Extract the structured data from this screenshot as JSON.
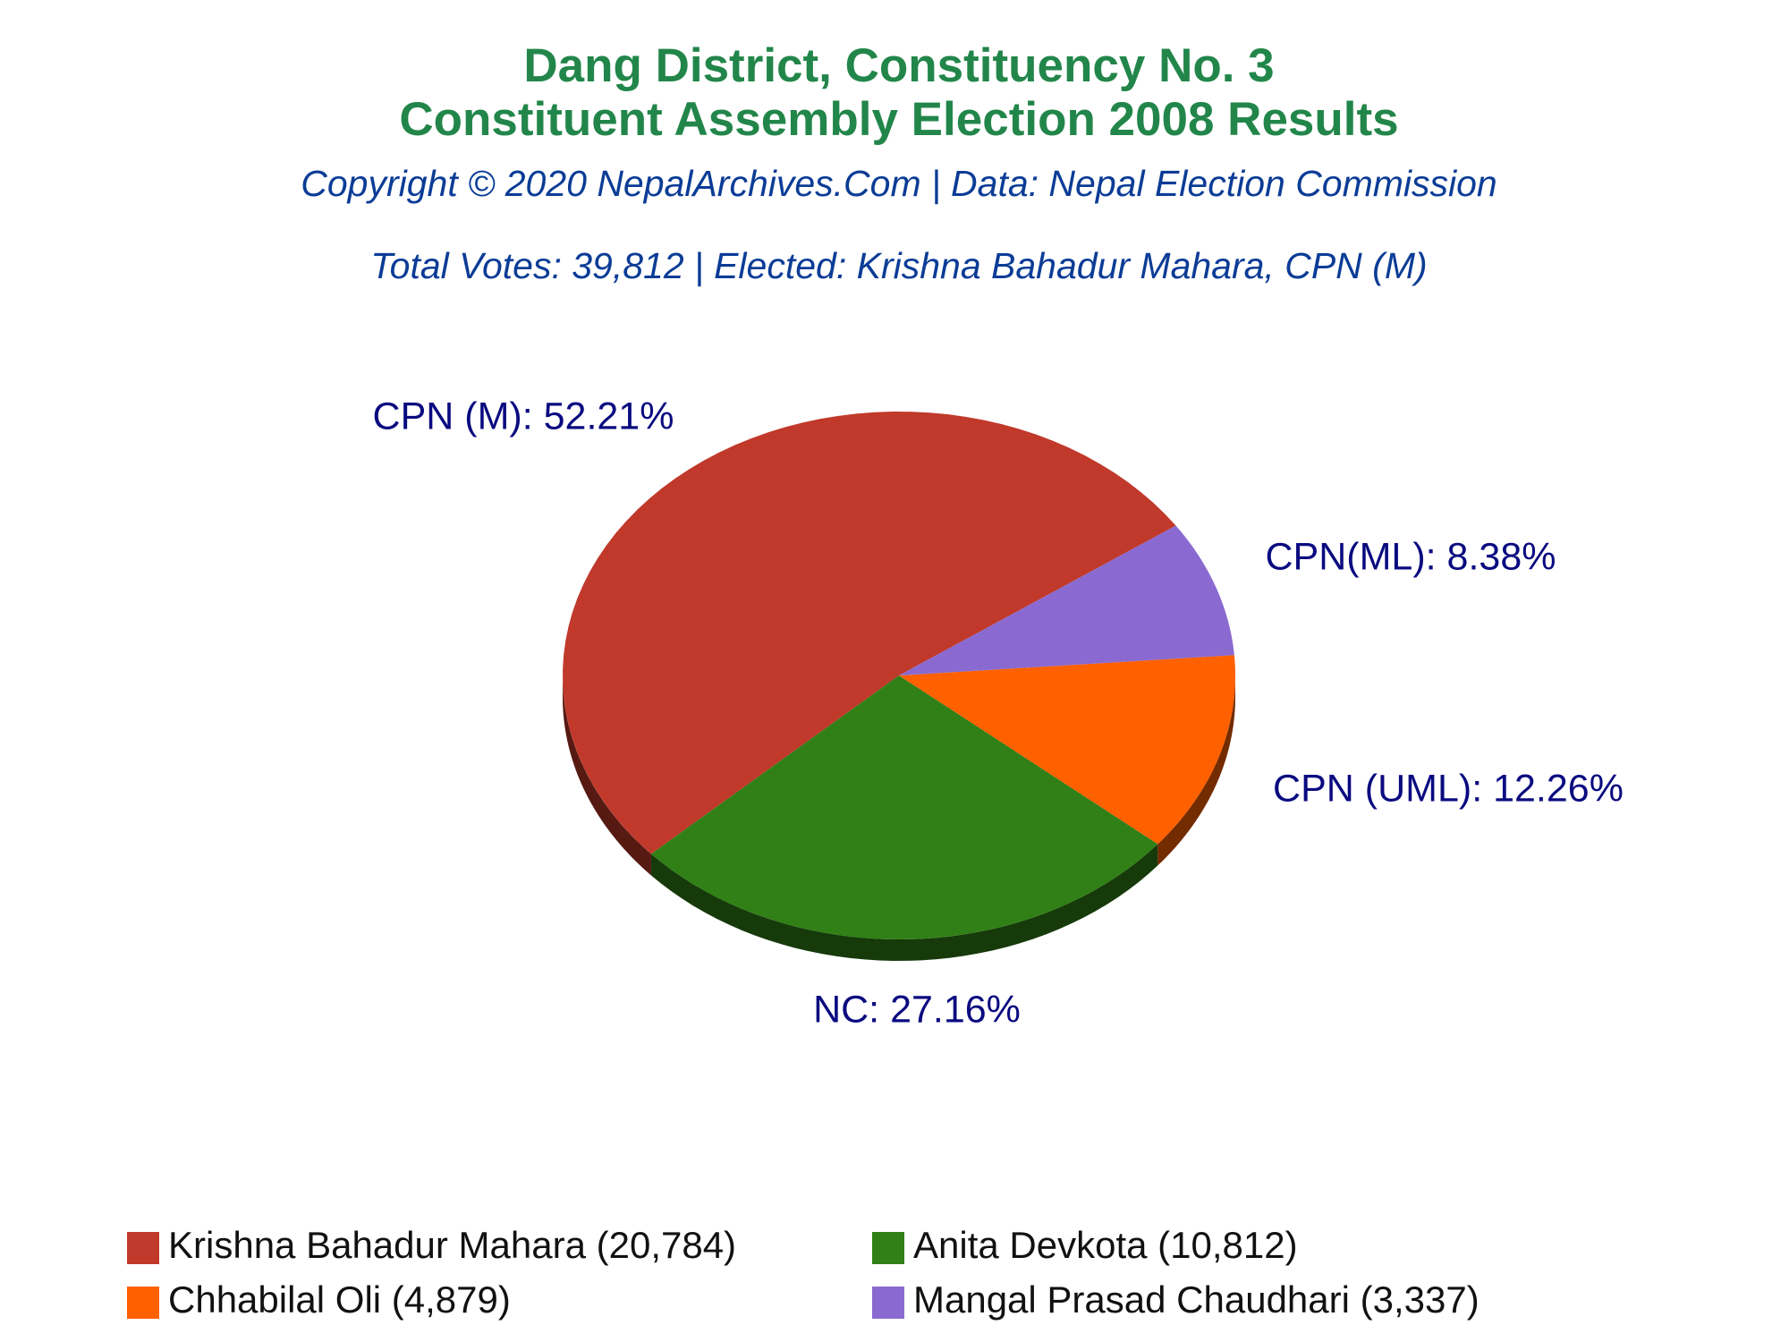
{
  "chart_data": {
    "type": "pie",
    "title": [
      "Dang District, Constituency No. 3",
      "Constituent Assembly Election 2008 Results"
    ],
    "subtitle": "Copyright © 2020 NepalArchives.Com | Data: Nepal Election Commission",
    "annotation": "Total Votes: 39,812 | Elected: Krishna Bahadur Mahara, CPN (M)",
    "categories": [
      "CPN (M)",
      "NC",
      "CPN (UML)",
      "CPN(ML)"
    ],
    "values": [
      52.21,
      27.16,
      12.26,
      8.38
    ],
    "value_labels": [
      "CPN (M): 52.21%",
      "NC: 27.16%",
      "CPN (UML): 12.26%",
      "CPN(ML): 8.38%"
    ],
    "colors": [
      "#c0392b",
      "#318017",
      "#ff6000",
      "#8a6ad0"
    ],
    "legend": [
      "Krishna Bahadur Mahara (20,784)",
      "Anita Devkota (10,812)",
      "Chhabilal Oli (4,879)",
      "Mangal Prasad Chaudhari (3,337)"
    ]
  }
}
